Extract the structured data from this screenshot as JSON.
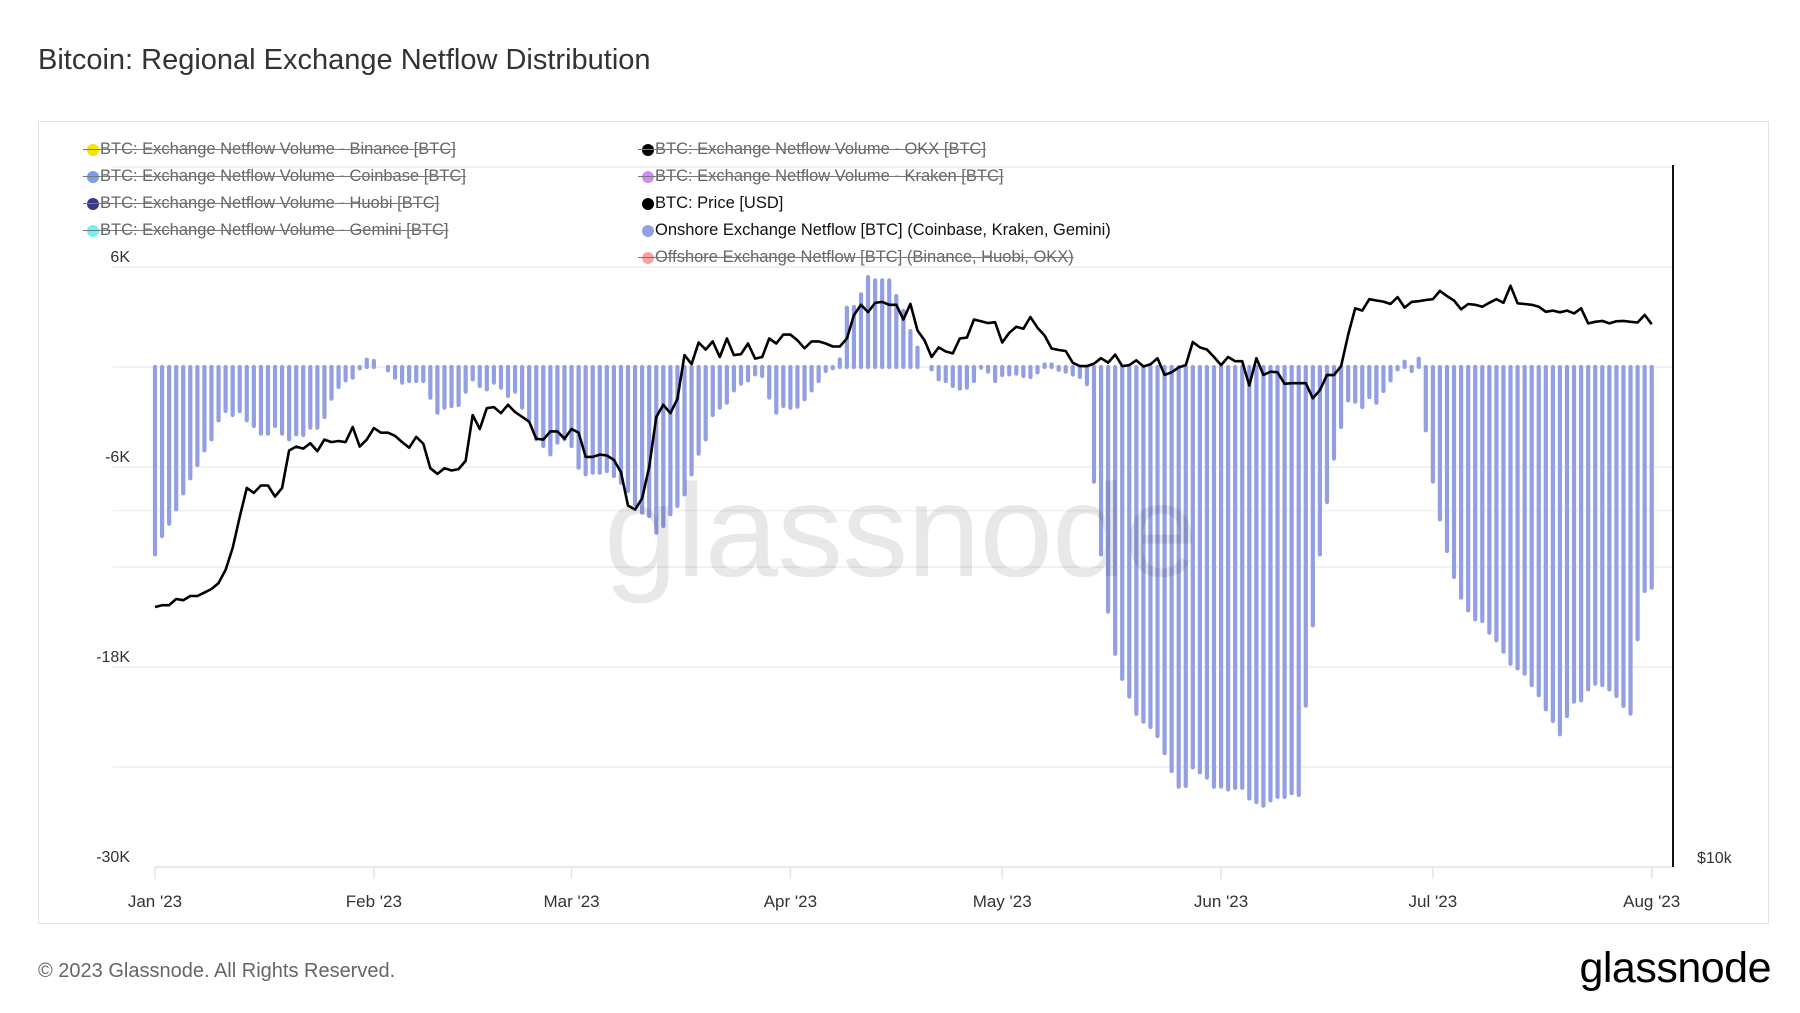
{
  "title": "Bitcoin: Regional Exchange Netflow Distribution",
  "footer": "© 2023 Glassnode. All Rights Reserved.",
  "logo": "glassnode",
  "watermark": "glassnode",
  "legend": [
    {
      "label": "BTC: Exchange Netflow Volume - Binance [BTC]",
      "color": "#f5e400",
      "hidden": true
    },
    {
      "label": "BTC: Exchange Netflow Volume - Coinbase [BTC]",
      "color": "#789cf0",
      "hidden": true
    },
    {
      "label": "BTC: Exchange Netflow Volume - Huobi [BTC]",
      "color": "#343a88",
      "hidden": true
    },
    {
      "label": "BTC: Exchange Netflow Volume - Gemini [BTC]",
      "color": "#6ef3ee",
      "hidden": true
    },
    {
      "label": "Offshore Exchange Netflow [BTC] (Binance, Huobi, OKX)",
      "color": "#f7a3a3",
      "hidden": true
    },
    {
      "label": "BTC: Exchange Netflow Volume - OKX [BTC]",
      "color": "#000000",
      "hidden": true
    },
    {
      "label": "BTC: Exchange Netflow Volume - Kraken [BTC]",
      "color": "#d48cf3",
      "hidden": true
    },
    {
      "label": "BTC: Price [USD]",
      "color": "#000000",
      "hidden": false
    },
    {
      "label": "Onshore Exchange Netflow [BTC] (Coinbase, Kraken, Gemini)",
      "color": "#939fe3",
      "hidden": false
    }
  ],
  "chart_data": {
    "type": "bar",
    "title": "Bitcoin: Regional Exchange Netflow Distribution",
    "x_start": "2023-01-01",
    "x_step": "1 day",
    "x_tick_labels": [
      "Jan '23",
      "Feb '23",
      "Mar '23",
      "Apr '23",
      "May '23",
      "Jun '23",
      "Jul '23",
      "Aug '23"
    ],
    "x_tick_days": [
      0,
      31,
      59,
      90,
      120,
      151,
      181,
      212
    ],
    "y_left": {
      "tick_labels": [
        "6K",
        "-6K",
        "-18K",
        "-30K"
      ],
      "tick_values": [
        6000,
        -6000,
        -18000,
        -30000
      ],
      "range": [
        -30000,
        12000
      ],
      "gridline_step": 6000
    },
    "y_right": {
      "scale": "log",
      "tick_labels": [
        "$10k"
      ],
      "tick_values": [
        10000
      ],
      "range": [
        10000,
        80000
      ]
    },
    "grid": true,
    "legend_placement": "top-left",
    "series": [
      {
        "name": "Onshore Exchange Netflow [BTC] (Coinbase, Kraken, Gemini)",
        "type": "bar",
        "axis": "left",
        "color": "#939fe3",
        "values": [
          -11240,
          -10140,
          -9400,
          -8540,
          -7580,
          -6680,
          -5880,
          -5000,
          -4340,
          -3200,
          -2640,
          -2880,
          -2640,
          -3200,
          -3540,
          -4000,
          -4000,
          -3540,
          -4000,
          -4340,
          -4040,
          -4080,
          -3640,
          -3640,
          -3000,
          -1900,
          -1200,
          -800,
          -640,
          -80,
          440,
          360,
          0,
          -200,
          -640,
          -940,
          -840,
          -840,
          -840,
          -1840,
          -2740,
          -2440,
          -2340,
          -2280,
          -1480,
          -740,
          -1140,
          -1340,
          -940,
          -1240,
          -1740,
          -1480,
          -2440,
          -3140,
          -4340,
          -4740,
          -5240,
          -4540,
          -4340,
          -4740,
          -6040,
          -6440,
          -6340,
          -6340,
          -6240,
          -6540,
          -6940,
          -7440,
          -8240,
          -8740,
          -8940,
          -9940,
          -9540,
          -8840,
          -8340,
          -7640,
          -6440,
          -5200,
          -4340,
          -2880,
          -2440,
          -2140,
          -1400,
          -1000,
          -800,
          -440,
          -540,
          -1840,
          -2740,
          -2340,
          -2440,
          -2380,
          -1940,
          -1400,
          -840,
          -240,
          -80,
          460,
          3560,
          3600,
          4360,
          5400,
          5200,
          5200,
          5200,
          4260,
          3360,
          2160,
          1160,
          0,
          -140,
          -740,
          -840,
          -1140,
          -1300,
          -1240,
          -840,
          -40,
          -280,
          -840,
          -480,
          -440,
          -400,
          -540,
          -600,
          -320,
          150,
          150,
          -170,
          -280,
          -450,
          -600,
          -1030,
          -6880,
          -11250,
          -14680,
          -17210,
          -18710,
          -19780,
          -20810,
          -21280,
          -21600,
          -22140,
          -23170,
          -24240,
          -25180,
          -25140,
          -24020,
          -24320,
          -24640,
          -25180,
          -25180,
          -25350,
          -25250,
          -25250,
          -25890,
          -26110,
          -26320,
          -26000,
          -25790,
          -25790,
          -25570,
          -25680,
          -20320,
          -15500,
          -11250,
          -8100,
          -5490,
          -3600,
          -2000,
          -2080,
          -2400,
          -1800,
          -2140,
          -1440,
          -800,
          -140,
          320,
          -240,
          500,
          -3800,
          -6880,
          -9140,
          -11040,
          -12600,
          -13840,
          -14600,
          -15140,
          -15240,
          -15940,
          -16400,
          -17080,
          -17800,
          -18080,
          -18400,
          -19080,
          -19700,
          -20540,
          -21240,
          -22040,
          -20940,
          -20080,
          -20000,
          -19340,
          -19000,
          -19080,
          -19340,
          -19740,
          -20340,
          -20800,
          -16340,
          -13440,
          -13240
        ]
      },
      {
        "name": "BTC: Price [USD]",
        "type": "line",
        "axis": "right",
        "color": "#000000",
        "values": [
          16580,
          16640,
          16640,
          16840,
          16800,
          16940,
          16940,
          17050,
          17170,
          17370,
          17820,
          18600,
          19750,
          20900,
          20700,
          21000,
          21000,
          20550,
          20900,
          22480,
          22650,
          22560,
          22800,
          22450,
          22960,
          22850,
          22900,
          22850,
          23530,
          22650,
          22960,
          23480,
          23270,
          23270,
          23130,
          22850,
          22600,
          23080,
          22780,
          21720,
          21480,
          21720,
          21620,
          21680,
          22030,
          24080,
          23440,
          24410,
          24460,
          24170,
          24570,
          24220,
          24000,
          23770,
          23000,
          22960,
          23330,
          23330,
          23000,
          23440,
          23270,
          22200,
          22200,
          22300,
          22260,
          22070,
          21540,
          20200,
          20040,
          20480,
          21770,
          24000,
          24570,
          24170,
          24850,
          27060,
          26590,
          27730,
          27350,
          27790,
          26960,
          27950,
          27060,
          27110,
          27680,
          26880,
          26960,
          27950,
          27680,
          28160,
          28160,
          27850,
          27420,
          27790,
          27790,
          27680,
          27520,
          27520,
          27950,
          29250,
          29840,
          29420,
          29950,
          30010,
          29840,
          29840,
          29000,
          29900,
          28390,
          27850,
          26960,
          27470,
          27250,
          27150,
          27950,
          28000,
          29000,
          28900,
          28800,
          28850,
          27730,
          28260,
          28600,
          28480,
          29140,
          28540,
          28110,
          27410,
          27330,
          27280,
          26660,
          26490,
          26490,
          26620,
          26900,
          26670,
          27090,
          26490,
          26540,
          26790,
          26470,
          26580,
          26900,
          26040,
          26170,
          26420,
          26540,
          27760,
          27470,
          27360,
          26960,
          26540,
          26960,
          26740,
          26740,
          25510,
          26900,
          26040,
          26200,
          26170,
          25590,
          25620,
          25620,
          25620,
          24880,
          25280,
          26040,
          26030,
          26490,
          28140,
          29640,
          29510,
          30170,
          30090,
          30030,
          29890,
          30290,
          29680,
          30010,
          30050,
          30120,
          30170,
          30660,
          30350,
          30090,
          29580,
          29890,
          29840,
          29730,
          29960,
          30170,
          29960,
          30970,
          29930,
          29890,
          29840,
          29730,
          29440,
          29510,
          29410,
          29510,
          29350,
          29640,
          28780,
          28870,
          28920,
          28780,
          28900,
          28920,
          28870,
          28830,
          29260,
          28740
        ]
      }
    ]
  }
}
